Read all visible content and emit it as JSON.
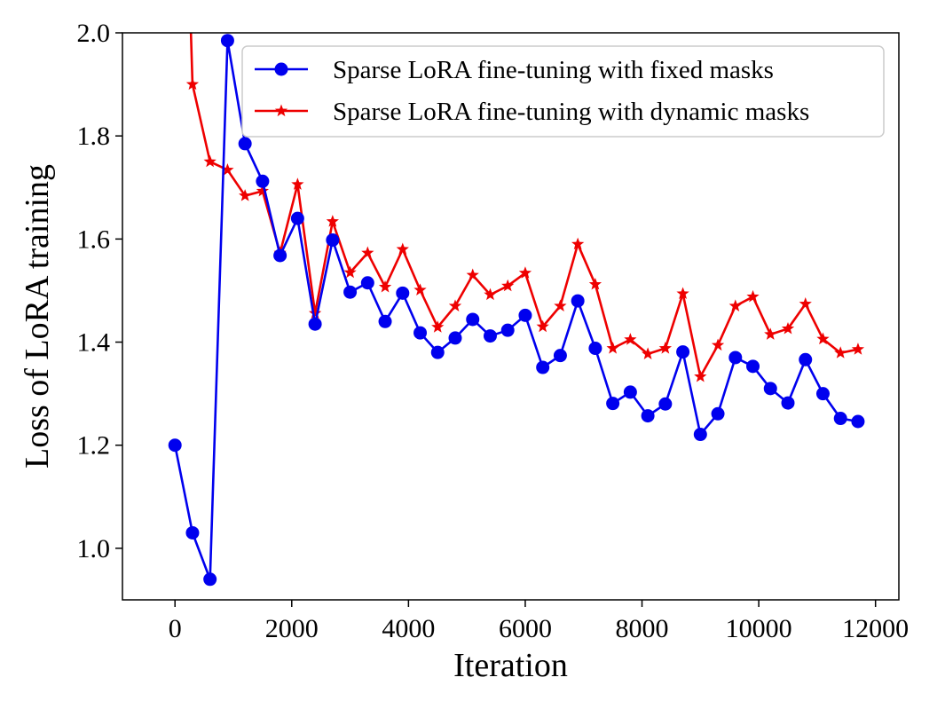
{
  "chart_data": {
    "type": "line",
    "title": "",
    "xlabel": "Iteration",
    "ylabel": "Loss of LoRA training",
    "xlim": [
      -900,
      12400
    ],
    "ylim": [
      0.9,
      2.0
    ],
    "xticks": [
      0,
      2000,
      4000,
      6000,
      8000,
      10000,
      12000
    ],
    "xtick_labels": [
      "0",
      "2000",
      "4000",
      "6000",
      "8000",
      "10000",
      "12000"
    ],
    "yticks": [
      1.0,
      1.2,
      1.4,
      1.6,
      1.8,
      2.0
    ],
    "ytick_labels": [
      "1.0",
      "1.2",
      "1.4",
      "1.6",
      "1.8",
      "2.0"
    ],
    "grid": false,
    "legend_position": "top-right",
    "series": [
      {
        "name": "Sparse LoRA fine-tuning with fixed masks",
        "color": "#0000ee",
        "marker": "circle",
        "x": [
          0,
          300,
          600,
          900,
          1200,
          1500,
          1800,
          2100,
          2400,
          2700,
          3000,
          3300,
          3600,
          3900,
          4200,
          4500,
          4800,
          5100,
          5400,
          5700,
          6000,
          6300,
          6600,
          6900,
          7200,
          7500,
          7800,
          8100,
          8400,
          8700,
          9000,
          9300,
          9600,
          9900,
          10200,
          10500,
          10800,
          11100,
          11400,
          11700
        ],
        "y": [
          1.2,
          1.03,
          0.94,
          1.985,
          1.785,
          1.712,
          1.568,
          1.64,
          1.435,
          1.598,
          1.497,
          1.515,
          1.44,
          1.495,
          1.418,
          1.38,
          1.408,
          1.444,
          1.412,
          1.423,
          1.452,
          1.351,
          1.374,
          1.48,
          1.388,
          1.281,
          1.303,
          1.257,
          1.28,
          1.381,
          1.221,
          1.261,
          1.37,
          1.353,
          1.31,
          1.282,
          1.366,
          1.3,
          1.252,
          1.246
        ]
      },
      {
        "name": "Sparse LoRA fine-tuning with dynamic masks",
        "color": "#ee0000",
        "marker": "star",
        "x": [
          300,
          600,
          900,
          1200,
          1500,
          1800,
          2100,
          2400,
          2700,
          3000,
          3300,
          3600,
          3900,
          4200,
          4500,
          4800,
          5100,
          5400,
          5700,
          6000,
          6300,
          6600,
          6900,
          7200,
          7500,
          7800,
          8100,
          8400,
          8700,
          9000,
          9300,
          9600,
          9900,
          10200,
          10500,
          10800,
          11100,
          11400,
          11700
        ],
        "y": [
          1.9,
          1.75,
          1.734,
          1.684,
          1.693,
          1.573,
          1.706,
          1.456,
          1.634,
          1.535,
          1.573,
          1.507,
          1.58,
          1.501,
          1.429,
          1.47,
          1.53,
          1.492,
          1.509,
          1.534,
          1.43,
          1.47,
          1.59,
          1.512,
          1.388,
          1.405,
          1.377,
          1.388,
          1.494,
          1.333,
          1.394,
          1.47,
          1.488,
          1.415,
          1.426,
          1.474,
          1.406,
          1.379,
          1.386
        ],
        "lead_in_above_ylim": true
      }
    ]
  }
}
